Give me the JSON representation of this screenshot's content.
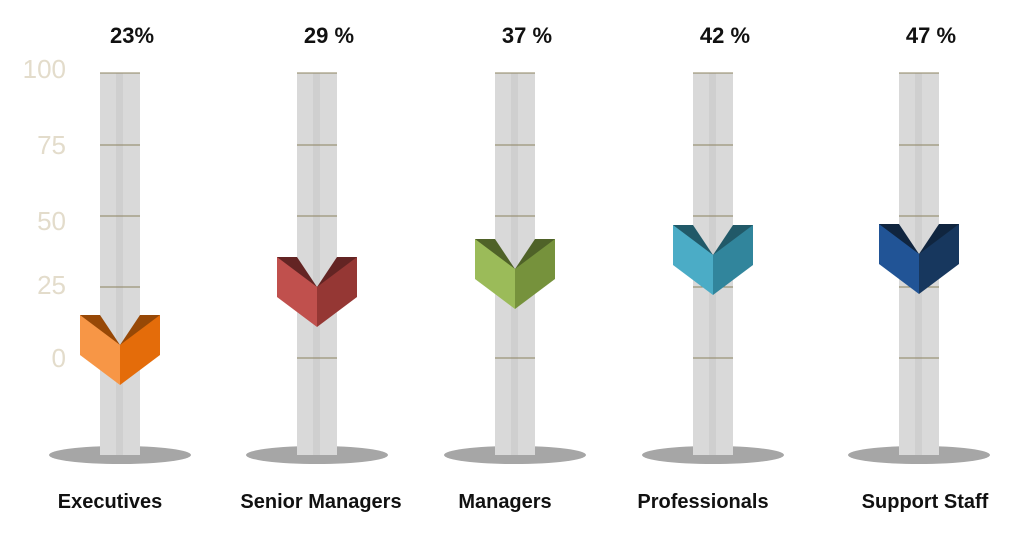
{
  "chart_data": {
    "type": "thermometer-bar",
    "categories": [
      "Executives",
      "Senior Managers",
      "Managers",
      "Professionals",
      "Support Staff"
    ],
    "values": [
      23,
      29,
      37,
      42,
      47
    ],
    "value_labels": [
      "23%",
      "29 %",
      "37 %",
      "42 %",
      "47 %"
    ],
    "yticks": [
      "100",
      "75",
      "50",
      "25",
      "0"
    ],
    "ylim": [
      0,
      100
    ],
    "grid": false,
    "colors": [
      {
        "light": "#F79646",
        "dark": "#E46C0A",
        "top": "#974806"
      },
      {
        "light": "#C0504D",
        "dark": "#953734",
        "top": "#632423"
      },
      {
        "light": "#9BBB59",
        "dark": "#76923C",
        "top": "#4F6228"
      },
      {
        "light": "#4BACC6",
        "dark": "#31859C",
        "top": "#215968"
      },
      {
        "light": "#215496",
        "dark": "#17375E",
        "top": "#10253F"
      }
    ]
  }
}
